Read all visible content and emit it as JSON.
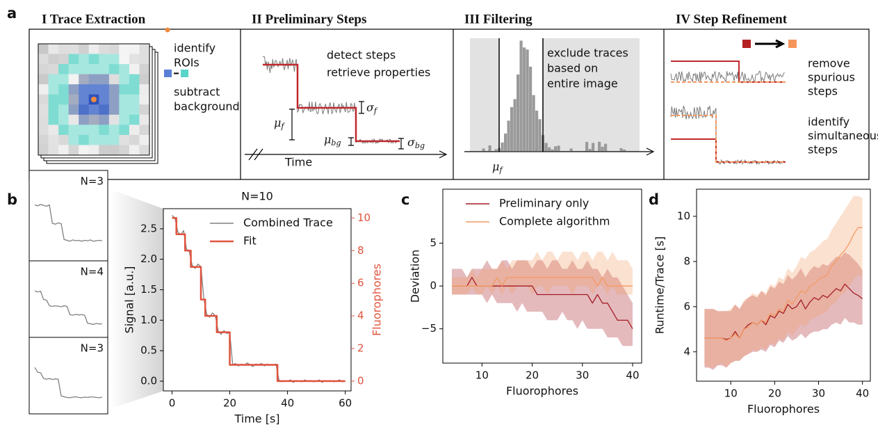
{
  "figure": {
    "panel_labels": [
      "a",
      "b",
      "c",
      "d"
    ],
    "panel_a": {
      "titles": [
        "I Trace Extraction",
        "II Preliminary Steps",
        "III Filtering",
        "IV Step Refinement"
      ],
      "extraction": {
        "identify": [
          "identify",
          "ROIs"
        ],
        "subtract": [
          "subtract",
          "background"
        ]
      },
      "preliminary": {
        "lines": [
          "detect steps",
          "retrieve properties"
        ],
        "sigma_f": {
          "symbol": "σ",
          "sub": "f"
        },
        "mu_f": {
          "symbol": "μ",
          "sub": "f"
        },
        "mu_bg": {
          "symbol": "μ",
          "sub": "bg"
        },
        "sigma_bg": {
          "symbol": "σ",
          "sub": "bg"
        },
        "axis": "Time"
      },
      "filtering": {
        "lines": [
          "exclude traces",
          "based on",
          "entire image"
        ],
        "mu_f": {
          "symbol": "μ",
          "sub": "f"
        }
      },
      "refinement": {
        "remove": [
          "remove",
          "spurious",
          "steps"
        ],
        "identify": [
          "identify",
          "simultaneous",
          "steps"
        ]
      }
    }
  },
  "chart_data": [
    {
      "type": "inset",
      "title": "N=3",
      "color": "#808080",
      "ylim": [
        -0.3,
        1.1
      ],
      "values": [
        0.82,
        0.8,
        0.83,
        0.81,
        0.79,
        0.82,
        0.4,
        0.38,
        0.41,
        0.39,
        0.03,
        0.01,
        -0.01,
        0.02,
        0,
        0.01,
        -0.01,
        0.01,
        0,
        0.02,
        -0.01,
        0,
        0.01,
        0
      ]
    },
    {
      "type": "inset",
      "title": "N=4",
      "color": "#808080",
      "ylim": [
        -0.2,
        1.3
      ],
      "values": [
        1.05,
        1.02,
        1.04,
        0.78,
        0.76,
        0.58,
        0.56,
        0.58,
        0.57,
        0.55,
        0.58,
        0.56,
        0.3,
        0.28,
        0.31,
        0.29,
        0.3,
        0.28,
        0.03,
        0.01,
        -0.01,
        0.02,
        0,
        0.01
      ]
    },
    {
      "type": "inset",
      "title": "N=3",
      "color": "#808080",
      "ylim": [
        -0.3,
        1.2
      ],
      "values": [
        0.95,
        0.8,
        0.78,
        0.6,
        0.58,
        0.6,
        0.57,
        0.59,
        0.58,
        0.05,
        0.02,
        0,
        -0.01,
        0.01,
        0.02,
        0,
        -0.01,
        0.01,
        0,
        0.02,
        0.01,
        0,
        -0.01,
        0.01
      ]
    },
    {
      "type": "line",
      "title": "N=10",
      "xlabel": "Time [s]",
      "ylabel": "Signal [a.u.]",
      "y2label": "Fluorophores",
      "xlim": [
        -3,
        62
      ],
      "ylim": [
        -0.16,
        2.83
      ],
      "y2lim": [
        -0.6,
        10.57
      ],
      "xticks": [
        0,
        20,
        40,
        60
      ],
      "yticks": [
        {
          "value": 0,
          "label": "0.0"
        },
        {
          "value": 0.5,
          "label": "0.5"
        },
        {
          "value": 1,
          "label": "1.0"
        },
        {
          "value": 1.5,
          "label": "1.5"
        },
        {
          "value": 2,
          "label": "2.0"
        },
        {
          "value": 2.5,
          "label": "2.5"
        }
      ],
      "y2ticks": [
        0,
        2,
        4,
        6,
        8,
        10
      ],
      "y2color": "#e0533d",
      "legend": "upper right",
      "series": [
        {
          "name": "Combined Trace",
          "color": "#808080",
          "x": [
            0,
            1,
            2,
            3,
            4,
            5,
            6,
            7,
            8,
            9,
            10,
            11,
            12,
            13,
            14,
            15,
            16,
            17,
            18,
            19,
            20,
            21,
            22,
            23,
            24,
            25,
            26,
            27,
            28,
            29,
            30,
            31,
            32,
            33,
            34,
            35,
            36,
            37,
            38,
            39,
            40,
            41,
            42,
            43,
            44,
            45,
            46,
            47,
            48,
            49,
            50,
            51,
            52,
            53,
            54,
            55,
            56,
            57,
            58,
            59,
            60
          ],
          "values": [
            2.72,
            2.68,
            2.45,
            2.4,
            2.47,
            2.17,
            2.12,
            1.9,
            1.85,
            1.92,
            1.88,
            1.36,
            1.1,
            1.05,
            1.12,
            1.07,
            0.82,
            0.77,
            0.83,
            0.78,
            0.8,
            0.27,
            0.29,
            0.25,
            0.28,
            0.26,
            0.3,
            0.27,
            0.24,
            0.28,
            0.27,
            0.29,
            0.25,
            0.28,
            0.26,
            0.27,
            0.28,
            0.02,
            -0.01,
            0.01,
            0,
            0.02,
            -0.02,
            0.01,
            0,
            -0.01,
            0.02,
            0,
            0.01,
            -0.01,
            0,
            0.02,
            -0.02,
            0.01,
            0,
            0.01,
            -0.01,
            0,
            0.02,
            -0.01,
            0
          ]
        },
        {
          "name": "Fit",
          "color": "#e0533d",
          "axis": "y2",
          "x": [
            0,
            1.5,
            1.5,
            4.5,
            4.5,
            6.5,
            6.5,
            10,
            10,
            11.5,
            11.5,
            15.5,
            15.5,
            20,
            20,
            36.5,
            36.5,
            60
          ],
          "values": [
            10,
            10,
            9,
            9,
            8,
            8,
            7,
            7,
            5,
            5,
            4,
            4,
            3,
            3,
            1,
            1,
            0,
            0
          ]
        }
      ]
    },
    {
      "type": "line",
      "xlabel": "Fluorophores",
      "ylabel": "Deviation",
      "xlim": [
        2.2,
        41.8
      ],
      "ylim": [
        -9,
        11.3
      ],
      "xticks": [
        10,
        20,
        30,
        40
      ],
      "yticks": [
        {
          "value": -5,
          "label": "−5"
        },
        0,
        5
      ],
      "legend": "upper center",
      "x": [
        4,
        5,
        6,
        7,
        8,
        9,
        10,
        11,
        12,
        13,
        14,
        15,
        16,
        17,
        18,
        19,
        20,
        21,
        22,
        23,
        24,
        25,
        26,
        27,
        28,
        29,
        30,
        31,
        32,
        33,
        34,
        35,
        36,
        37,
        38,
        39,
        40
      ],
      "series": [
        {
          "name": "Preliminary only",
          "color": "#a51c24",
          "values": [
            0,
            0,
            0,
            0,
            1,
            0,
            0,
            0,
            0,
            0,
            0,
            0,
            0,
            0,
            0,
            0,
            0,
            -1,
            -1,
            -1,
            -1,
            -1,
            -1,
            -1,
            -1,
            -1,
            -1,
            -1,
            -2,
            -1,
            -2,
            -2,
            -3,
            -4,
            -4,
            -4,
            -5
          ],
          "lower": [
            -1,
            -1,
            -1,
            -1,
            -1,
            -1,
            -1,
            -2,
            -1,
            -2,
            -2,
            -2,
            -2,
            -3,
            -2,
            -3,
            -3,
            -3,
            -3,
            -4,
            -4,
            -4,
            -3,
            -4,
            -4,
            -5,
            -4,
            -5,
            -5,
            -5,
            -5,
            -6,
            -6,
            -6,
            -7,
            -7,
            -7
          ],
          "upper": [
            2,
            2,
            2,
            1,
            2,
            2,
            2,
            3,
            2,
            2,
            3,
            3,
            2,
            3,
            3,
            3,
            2,
            3,
            3,
            2,
            3,
            3,
            2,
            2,
            3,
            2,
            2,
            3,
            2,
            2,
            1,
            2,
            1,
            1,
            0,
            -1,
            -2
          ]
        },
        {
          "name": "Complete algorithm",
          "color": "#f39a63",
          "values": [
            0,
            0,
            0,
            0,
            0,
            0,
            0,
            0,
            0,
            1,
            0,
            1,
            1,
            1,
            1,
            1,
            1,
            1,
            1,
            1,
            1,
            1,
            1,
            1,
            1,
            1,
            1,
            1,
            1,
            0,
            1,
            0,
            0,
            0,
            0,
            0,
            0
          ],
          "lower": [
            -1,
            -1,
            -1,
            -1,
            0,
            -1,
            -1,
            0,
            -1,
            0,
            -1,
            0,
            -1,
            0,
            0,
            0,
            -1,
            0,
            0,
            -1,
            0,
            0,
            0,
            0,
            -1,
            0,
            0,
            0,
            -1,
            0,
            0,
            -1,
            0,
            -1,
            -1,
            -1,
            -1
          ],
          "upper": [
            1,
            1,
            1,
            1,
            2,
            1,
            2,
            2,
            2,
            2,
            3,
            2,
            3,
            3,
            3,
            3,
            3,
            4,
            3,
            4,
            4,
            3,
            4,
            4,
            4,
            3,
            4,
            4,
            3,
            4,
            4,
            3,
            4,
            3,
            3,
            3,
            2
          ]
        }
      ]
    },
    {
      "type": "line",
      "xlabel": "Fluorophores",
      "ylabel": "Runtime/Trace [s]",
      "xlim": [
        2.2,
        41.8
      ],
      "ylim": [
        2.7,
        11.2
      ],
      "xticks": [
        10,
        20,
        30,
        40
      ],
      "yticks": [
        4,
        6,
        8,
        10
      ],
      "x": [
        4,
        5,
        6,
        7,
        8,
        9,
        10,
        11,
        12,
        13,
        14,
        15,
        16,
        17,
        18,
        19,
        20,
        21,
        22,
        23,
        24,
        25,
        26,
        27,
        28,
        29,
        30,
        31,
        32,
        33,
        34,
        35,
        36,
        37,
        38,
        39,
        40
      ],
      "series": [
        {
          "name": "Preliminary only",
          "color": "#a51c24",
          "values": [
            4.6,
            4.6,
            4.6,
            4.6,
            4.6,
            4.55,
            4.6,
            4.9,
            4.6,
            5.0,
            5.2,
            5.3,
            5.2,
            5.4,
            5.2,
            5.6,
            5.5,
            5.8,
            5.7,
            6.1,
            5.9,
            6.0,
            6.3,
            5.9,
            6.2,
            6.4,
            6.3,
            6.5,
            6.4,
            6.6,
            6.8,
            6.7,
            7.0,
            6.8,
            6.6,
            6.5,
            6.35
          ],
          "lower": [
            3.3,
            3.3,
            3.2,
            3.4,
            3.4,
            3.3,
            3.5,
            3.6,
            3.6,
            3.8,
            3.9,
            4.0,
            4.0,
            4.1,
            4.0,
            4.3,
            4.2,
            4.5,
            4.4,
            4.7,
            4.5,
            4.6,
            4.8,
            4.6,
            4.8,
            4.9,
            4.9,
            5.0,
            5.0,
            5.2,
            5.3,
            5.2,
            5.5,
            5.3,
            5.3,
            5.2,
            5.2
          ],
          "upper": [
            5.9,
            5.9,
            5.9,
            5.8,
            5.8,
            5.8,
            5.8,
            6.1,
            5.9,
            6.2,
            6.4,
            6.5,
            6.4,
            6.7,
            6.5,
            6.9,
            6.8,
            7.1,
            7.0,
            7.4,
            7.2,
            7.4,
            7.7,
            7.3,
            7.6,
            7.8,
            7.7,
            7.9,
            7.8,
            8.0,
            8.2,
            8.2,
            8.4,
            8.3,
            8.1,
            7.9,
            7.6
          ]
        },
        {
          "name": "Complete algorithm",
          "color": "#f39a63",
          "values": [
            4.6,
            4.6,
            4.6,
            4.6,
            4.6,
            4.5,
            4.6,
            4.8,
            4.6,
            5.0,
            5.1,
            5.3,
            5.2,
            5.4,
            5.3,
            5.7,
            5.6,
            5.9,
            5.8,
            6.3,
            6.1,
            6.4,
            6.7,
            6.6,
            6.9,
            7.0,
            7.2,
            7.3,
            7.4,
            7.8,
            8.0,
            8.3,
            8.5,
            8.8,
            9.2,
            9.5,
            9.5
          ],
          "lower": [
            3.4,
            3.3,
            3.3,
            3.4,
            3.5,
            3.3,
            3.5,
            3.6,
            3.6,
            3.8,
            3.9,
            4.1,
            4.0,
            4.2,
            4.1,
            4.4,
            4.3,
            4.6,
            4.5,
            4.9,
            4.7,
            5.0,
            5.2,
            5.1,
            5.4,
            5.5,
            5.6,
            5.7,
            5.8,
            6.1,
            6.2,
            6.5,
            6.6,
            6.9,
            7.2,
            7.4,
            7.3
          ],
          "upper": [
            5.9,
            5.9,
            5.9,
            5.8,
            5.8,
            5.8,
            5.9,
            6.1,
            5.9,
            6.3,
            6.4,
            6.6,
            6.5,
            6.7,
            6.6,
            7.0,
            6.9,
            7.3,
            7.2,
            7.7,
            7.5,
            7.8,
            8.2,
            8.1,
            8.4,
            8.5,
            8.7,
            8.9,
            9.0,
            9.4,
            9.7,
            10.0,
            10.3,
            10.6,
            10.9,
            10.9,
            10.8
          ]
        }
      ]
    }
  ]
}
